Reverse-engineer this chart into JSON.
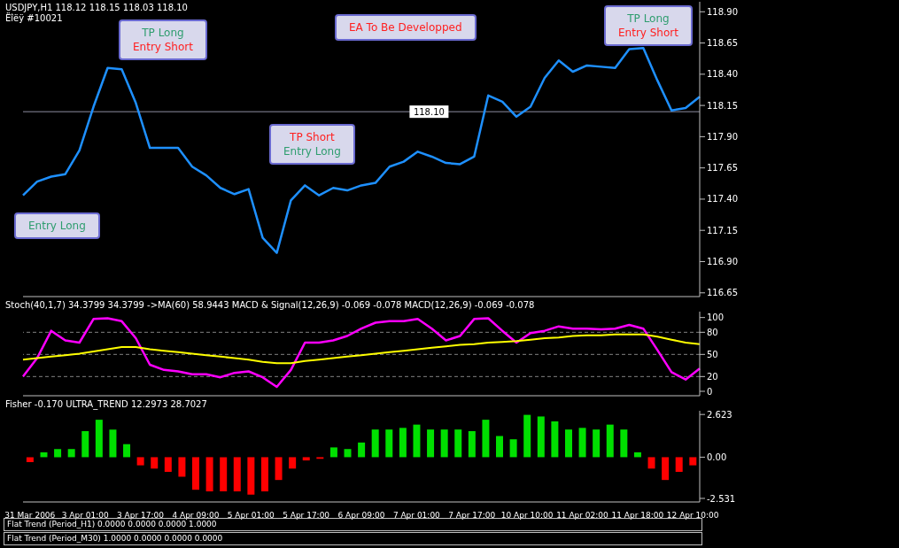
{
  "chart_data": [
    {
      "type": "line",
      "title": "USDJPY,H1 118.12 118.15 118.03 118.10",
      "subtitle": "Ëîëÿ #10021",
      "categories": [
        null,
        null,
        null,
        null,
        null,
        null,
        null,
        null,
        null,
        null,
        null,
        null,
        null,
        null,
        null,
        null,
        null,
        null,
        null,
        null,
        null,
        null,
        null,
        null,
        null,
        null,
        null,
        null,
        null,
        null,
        null,
        null,
        null,
        null,
        null,
        null,
        null,
        null,
        null,
        null,
        null,
        null,
        null,
        null,
        null,
        null,
        null,
        null,
        null
      ],
      "series": [
        {
          "color": "#1e90ff",
          "values": [
            117.43,
            117.54,
            117.58,
            117.6,
            117.79,
            118.14,
            118.45,
            118.44,
            118.17,
            117.81,
            117.81,
            117.81,
            117.66,
            117.59,
            117.49,
            117.44,
            117.48,
            117.09,
            116.97,
            117.39,
            117.51,
            117.43,
            117.49,
            117.47,
            117.51,
            117.53,
            117.66,
            117.7,
            117.78,
            117.74,
            117.69,
            117.68,
            117.74,
            118.23,
            118.18,
            118.06,
            118.14,
            118.37,
            118.51,
            118.42,
            118.47,
            118.46,
            118.45,
            118.6,
            118.61,
            118.35,
            118.11,
            118.13,
            118.22
          ]
        }
      ],
      "ylim": [
        116.62,
        118.98
      ],
      "yticks": [
        116.65,
        {
          "value": 116.9,
          "label": "116.90"
        },
        117.15,
        {
          "value": 117.4,
          "label": "117.40"
        },
        117.65,
        {
          "value": 117.9,
          "label": "117.90"
        },
        118.15,
        {
          "value": 118.4,
          "label": "118.40"
        },
        118.65,
        {
          "value": 118.9,
          "label": "118.90"
        }
      ],
      "ref_lines": [
        {
          "axis": "y",
          "value": 118.1,
          "label": "118.10",
          "color": "#8c8ca0"
        }
      ],
      "annotations": [
        "TP Long\nEntry Short",
        "Entry Long",
        "TP Short\nEntry Long",
        "EA To Be Developped",
        "TP Long\nEntry Short"
      ],
      "tick_labels": "y",
      "grid": false,
      "legend": false,
      "marker": "none"
    },
    {
      "type": "line",
      "title": "Stoch(40,1,7) 34.3799 34.3799 ->MA(60) 58.9443 MACD & Signal(12,26,9) -0.069 -0.078 MACD(12,26,9) -0.069 -0.078",
      "categories": [
        null,
        null,
        null,
        null,
        null,
        null,
        null,
        null,
        null,
        null,
        null,
        null,
        null,
        null,
        null,
        null,
        null,
        null,
        null,
        null,
        null,
        null,
        null,
        null,
        null,
        null,
        null,
        null,
        null,
        null,
        null,
        null,
        null,
        null,
        null,
        null,
        null,
        null,
        null,
        null,
        null,
        null,
        null,
        null,
        null,
        null,
        null,
        null,
        null
      ],
      "series": [
        {
          "color": "#ff00ff",
          "values": [
            20,
            45,
            82,
            69,
            66,
            98,
            99,
            95,
            72,
            36,
            29,
            27,
            23,
            23,
            19,
            25,
            27,
            19,
            6,
            29,
            66,
            66,
            69,
            75,
            85,
            93,
            95,
            95,
            98,
            85,
            69,
            75,
            98,
            99,
            82,
            66,
            79,
            82,
            88,
            85,
            85,
            84,
            85,
            90,
            85,
            56,
            26,
            16,
            31
          ]
        },
        {
          "color": "#ffff00",
          "values": [
            43,
            45,
            47,
            49,
            51,
            54,
            57,
            60,
            60,
            57,
            55,
            53,
            51,
            49,
            47,
            45,
            43,
            40,
            38,
            38,
            41,
            43,
            45,
            47,
            49,
            51,
            53,
            55,
            57,
            59,
            61,
            63,
            64,
            66,
            67,
            68,
            70,
            72,
            73,
            75,
            76,
            76,
            77,
            77,
            77,
            74,
            70,
            66,
            64
          ]
        }
      ],
      "ylim": [
        -6,
        108
      ],
      "yticks": [
        0,
        20,
        50,
        80,
        100
      ],
      "ref_lines": [
        {
          "axis": "y",
          "value": 20,
          "color": "#808080",
          "line_style": "dashed"
        },
        {
          "axis": "y",
          "value": 50,
          "color": "#808080",
          "line_style": "dashed"
        },
        {
          "axis": "y",
          "value": 80,
          "color": "#808080",
          "line_style": "dashed"
        }
      ],
      "tick_labels": "y",
      "grid": false,
      "legend": false,
      "marker": "none"
    },
    {
      "type": "bar",
      "title": "Fisher -0.170 ULTRA_TREND 12.2973 28.7027",
      "categories": [
        "31 Mar 2006",
        null,
        null,
        null,
        "3 Apr 01:00",
        null,
        null,
        null,
        "3 Apr 17:00",
        null,
        null,
        null,
        "4 Apr 09:00",
        null,
        null,
        null,
        "5 Apr 01:00",
        null,
        null,
        null,
        "5 Apr 17:00",
        null,
        null,
        null,
        "6 Apr 09:00",
        null,
        null,
        null,
        "7 Apr 01:00",
        null,
        null,
        null,
        "7 Apr 17:00",
        null,
        null,
        null,
        "10 Apr 10:00",
        null,
        null,
        null,
        "11 Apr 02:00",
        null,
        null,
        null,
        "11 Apr 18:00",
        null,
        null,
        null,
        "12 Apr 10:00"
      ],
      "values": [
        -0.3,
        0.3,
        0.5,
        0.5,
        1.6,
        2.3,
        1.7,
        0.8,
        -0.5,
        -0.7,
        -0.9,
        -1.2,
        -2.0,
        -2.1,
        -2.1,
        -2.1,
        -2.3,
        -2.1,
        -1.4,
        -0.7,
        -0.2,
        -0.1,
        0.6,
        0.5,
        0.9,
        1.7,
        1.7,
        1.8,
        2.0,
        1.7,
        1.7,
        1.7,
        1.6,
        2.3,
        1.3,
        1.1,
        2.6,
        2.5,
        2.2,
        1.7,
        1.8,
        1.7,
        2.0,
        1.7,
        0.3,
        -0.7,
        -1.4,
        -0.9,
        -0.5
      ],
      "colors": [
        "#ff0000",
        "#00e000",
        "#00e000",
        "#00e000",
        "#00e000",
        "#00e000",
        "#00e000",
        "#00e000",
        "#ff0000",
        "#ff0000",
        "#ff0000",
        "#ff0000",
        "#ff0000",
        "#ff0000",
        "#ff0000",
        "#ff0000",
        "#ff0000",
        "#ff0000",
        "#ff0000",
        "#ff0000",
        "#ff0000",
        "#ff0000",
        "#00e000",
        "#00e000",
        "#00e000",
        "#00e000",
        "#00e000",
        "#00e000",
        "#00e000",
        "#00e000",
        "#00e000",
        "#00e000",
        "#00e000",
        "#00e000",
        "#00e000",
        "#00e000",
        "#00e000",
        "#00e000",
        "#00e000",
        "#00e000",
        "#00e000",
        "#00e000",
        "#00e000",
        "#00e000",
        "#00e000",
        "#ff0000",
        "#ff0000",
        "#ff0000",
        "#ff0000"
      ],
      "ylim": [
        -2.75,
        2.85
      ],
      "yticks": [
        -2.531,
        {
          "value": 0,
          "label": "0.00"
        },
        2.623
      ],
      "annotations": [
        "Flat Trend (Period_H1) 0.0000 0.0000 0.0000 1.0000",
        "Flat Trend (Period_M30) 1.0000 0.0000 0.0000 0.0000"
      ],
      "grid": false,
      "legend": false
    }
  ]
}
